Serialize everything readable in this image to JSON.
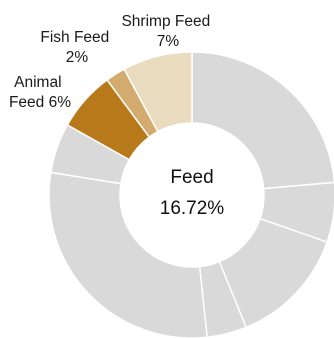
{
  "chart_data": {
    "type": "pie",
    "style": "donut",
    "center_text": {
      "line1": "Feed",
      "line2": "16.72%"
    },
    "slices": [
      {
        "label": "",
        "value": 21,
        "color": "#d9d9d9",
        "highlighted": false
      },
      {
        "label": "",
        "value": 6,
        "color": "#d9d9d9",
        "highlighted": false
      },
      {
        "label": "",
        "value": 12,
        "color": "#d9d9d9",
        "highlighted": false
      },
      {
        "label": "",
        "value": 4,
        "color": "#d9d9d9",
        "highlighted": false
      },
      {
        "label": "",
        "value": 26,
        "color": "#d9d9d9",
        "highlighted": false
      },
      {
        "label": "",
        "value": 5,
        "color": "#d9d9d9",
        "highlighted": false
      },
      {
        "label": "Animal Feed 6%",
        "label_lines": [
          "Animal",
          "Feed 6%"
        ],
        "value": 6,
        "color": "#b8791a",
        "highlighted": true
      },
      {
        "label": "Fish Feed 2%",
        "label_lines": [
          "Fish Feed",
          "2%"
        ],
        "value": 2,
        "color": "#d3ab6e",
        "highlighted": true
      },
      {
        "label": "Shrimp Feed 7%",
        "label_lines": [
          "Shrimp Feed",
          "7%"
        ],
        "value": 7,
        "color": "#e9dbbd",
        "highlighted": true
      }
    ]
  }
}
